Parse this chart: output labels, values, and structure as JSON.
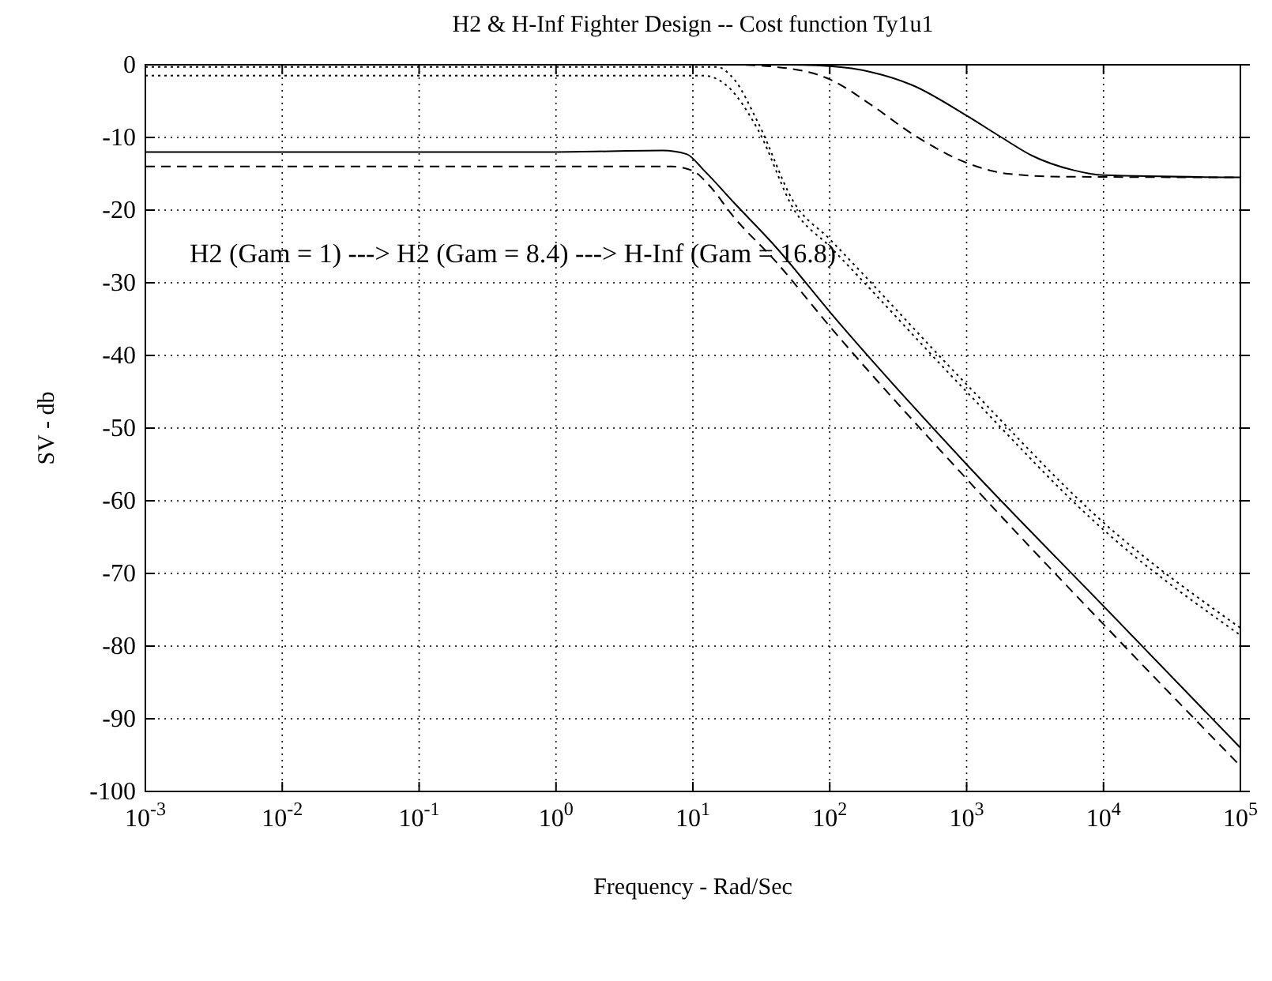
{
  "chart_data": {
    "type": "line",
    "title": "H2 & H-Inf Fighter Design -- Cost function Ty1u1",
    "xlabel": "Frequency - Rad/Sec",
    "ylabel": "SV - db",
    "log": "x",
    "grid": true,
    "xlim": [
      0.001,
      100000
    ],
    "ylim": [
      -100,
      0
    ],
    "xticks": [
      {
        "value": 0.001,
        "label": "10$^{-3}$"
      },
      {
        "value": 0.01,
        "label": "10$^{-2}$"
      },
      {
        "value": 0.1,
        "label": "10$^{-1}$"
      },
      {
        "value": 1,
        "label": "10$^{0}$"
      },
      {
        "value": 10,
        "label": "10$^{1}$"
      },
      {
        "value": 100,
        "label": "10$^{2}$"
      },
      {
        "value": 1000,
        "label": "10$^{3}$"
      },
      {
        "value": 10000,
        "label": "10$^{4}$"
      },
      {
        "value": 100000,
        "label": "10$^{5}$"
      }
    ],
    "yticks": [
      0,
      -10,
      -20,
      -30,
      -40,
      -50,
      -60,
      -70,
      -80,
      -90,
      -100
    ],
    "annotations": [
      "H2 (Gam = 1) ---> H2 (Gam = 8.4) ---> H-Inf (Gam = 16.8)"
    ],
    "series": [
      {
        "color": "#000000",
        "line_style": "solid",
        "x": [
          0.001,
          1,
          6,
          9,
          12,
          20,
          40,
          100,
          1000,
          10000,
          100000
        ],
        "values": [
          -12,
          -12,
          -11.8,
          -12.3,
          -14.5,
          -19,
          -25,
          -34,
          -55,
          -74.5,
          -94
        ]
      },
      {
        "color": "#000000",
        "line_style": "dashed",
        "x": [
          0.001,
          1,
          7,
          10,
          13,
          20,
          40,
          100,
          1000,
          10000,
          100000
        ],
        "values": [
          -14,
          -14,
          -14,
          -14.6,
          -16.5,
          -21,
          -27,
          -36,
          -57,
          -77,
          -96.5
        ]
      },
      {
        "color": "#000000",
        "line_style": "dotted",
        "x": [
          0.001,
          15,
          20,
          30,
          55,
          100,
          1000,
          10000,
          100000
        ],
        "values": [
          -0.3,
          -0.3,
          -2,
          -8,
          -19,
          -24,
          -44,
          -63,
          -77.5
        ]
      },
      {
        "color": "#000000",
        "line_style": "dotted",
        "x": [
          0.001,
          12,
          18,
          30,
          55,
          100,
          1000,
          10000,
          100000
        ],
        "values": [
          -1.5,
          -1.5,
          -3,
          -9,
          -20,
          -25,
          -45,
          -64,
          -78.5
        ]
      },
      {
        "color": "#000000",
        "line_style": "solid",
        "x": [
          0.001,
          50,
          100,
          200,
          400,
          1000,
          1800,
          3000,
          6000,
          10000,
          100000
        ],
        "values": [
          0,
          0,
          -0.2,
          -1,
          -2.8,
          -7,
          -10,
          -12.5,
          -14.5,
          -15.2,
          -15.5
        ]
      },
      {
        "color": "#000000",
        "line_style": "dashed",
        "x": [
          0.001,
          20,
          50,
          100,
          200,
          400,
          1000,
          2000,
          5000,
          100000
        ],
        "values": [
          0,
          0,
          -0.5,
          -2,
          -5.5,
          -9.5,
          -13.5,
          -15,
          -15.4,
          -15.5
        ]
      }
    ]
  }
}
